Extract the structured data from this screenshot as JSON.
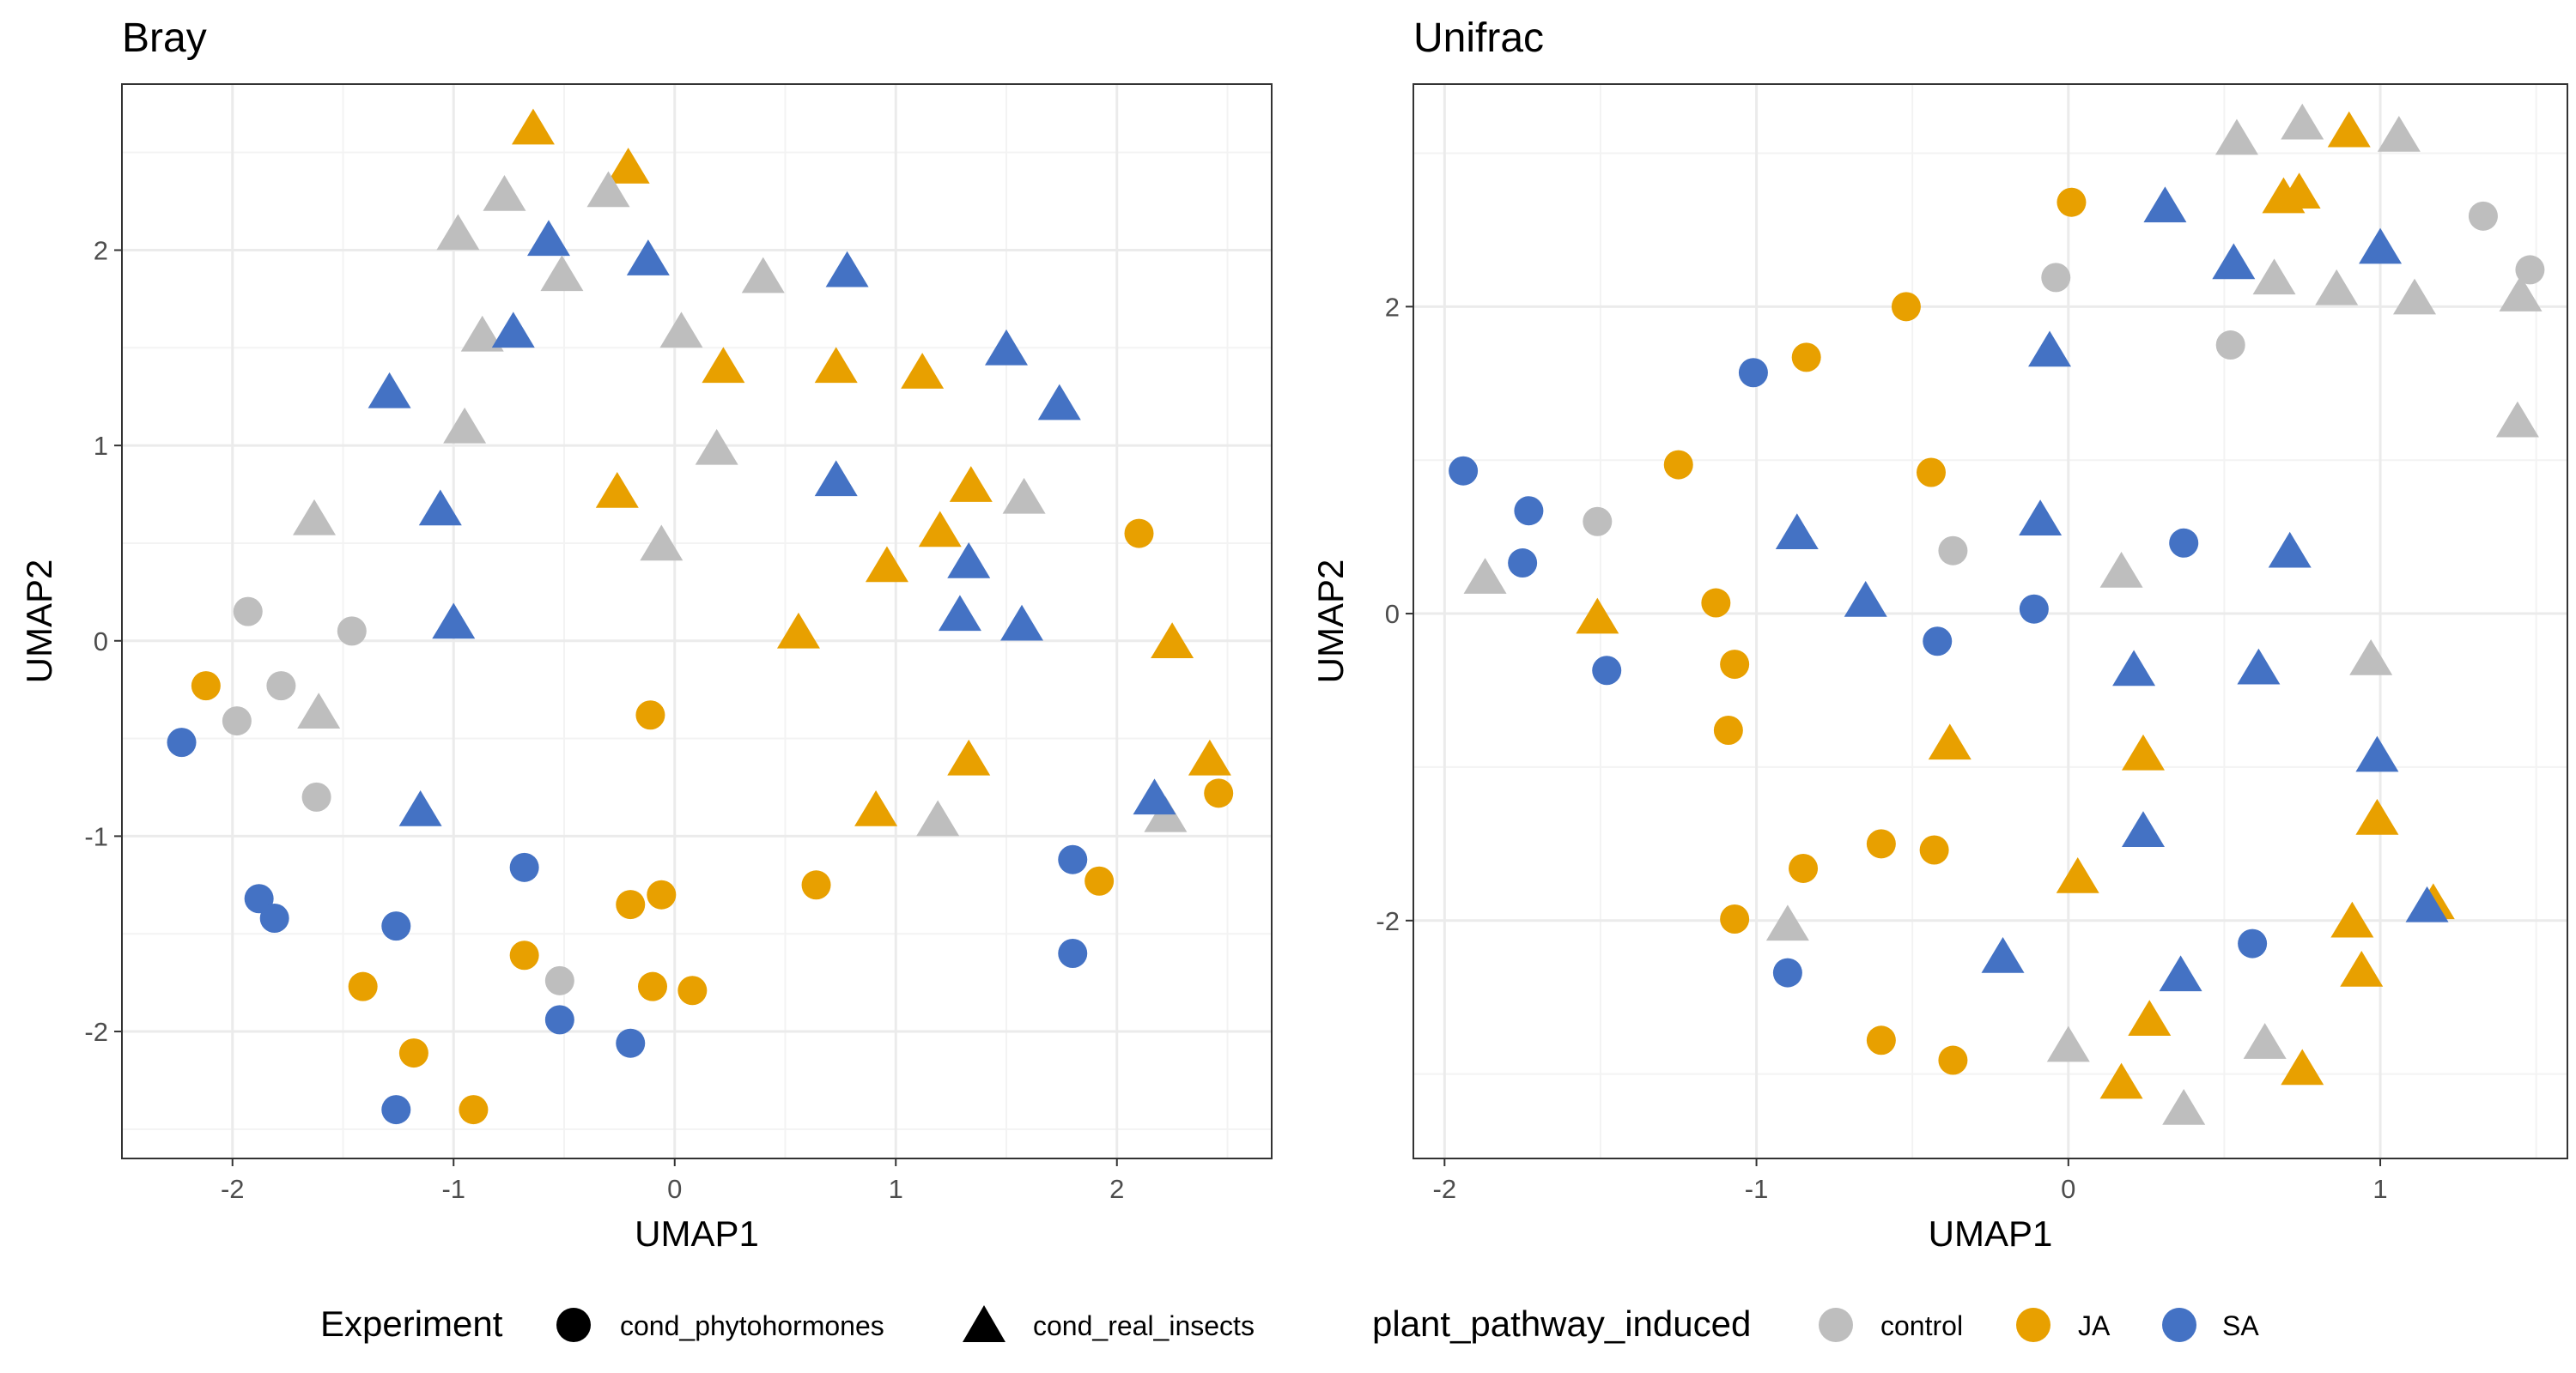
{
  "colors": {
    "control": "#bebebe",
    "JA": "#e8a000",
    "SA": "#4472c4",
    "grid_major": "#ebebeb",
    "grid_minor": "#f3f3f3",
    "panel_border": "#333333"
  },
  "legend": {
    "experiment": {
      "title": "Experiment",
      "items": [
        {
          "label": "cond_phytohormones",
          "shape": "circle",
          "icon": "circle-icon"
        },
        {
          "label": "cond_real_insects",
          "shape": "triangle",
          "icon": "triangle-icon"
        }
      ]
    },
    "pathway": {
      "title": "plant_pathway_induced",
      "items": [
        {
          "label": "control",
          "color_key": "control"
        },
        {
          "label": "JA",
          "color_key": "JA"
        },
        {
          "label": "SA",
          "color_key": "SA"
        }
      ]
    },
    "position": "bottom"
  },
  "chart_data": [
    {
      "type": "scatter",
      "title": "Bray",
      "xlabel": "UMAP1",
      "ylabel": "UMAP2",
      "xlim": [
        -2.5,
        2.7
      ],
      "ylim": [
        -2.65,
        2.85
      ],
      "xticks": [
        -2,
        -1,
        0,
        1,
        2
      ],
      "xtick_labels": [
        "-2",
        "-1",
        "0",
        "1",
        "2"
      ],
      "yticks": [
        -2,
        -1,
        0,
        1,
        2
      ],
      "ytick_labels": [
        "-2",
        "-1",
        "0",
        "1",
        "2"
      ],
      "grid": true,
      "points": [
        {
          "x": -2.23,
          "y": -0.52,
          "group": "SA",
          "shape": "circle"
        },
        {
          "x": -2.12,
          "y": -0.23,
          "group": "JA",
          "shape": "circle"
        },
        {
          "x": -1.98,
          "y": -0.41,
          "group": "control",
          "shape": "circle"
        },
        {
          "x": -1.93,
          "y": 0.15,
          "group": "control",
          "shape": "circle"
        },
        {
          "x": -1.78,
          "y": -0.23,
          "group": "control",
          "shape": "circle"
        },
        {
          "x": -1.62,
          "y": -0.8,
          "group": "control",
          "shape": "circle"
        },
        {
          "x": -1.46,
          "y": 0.05,
          "group": "control",
          "shape": "circle"
        },
        {
          "x": -1.88,
          "y": -1.32,
          "group": "SA",
          "shape": "circle"
        },
        {
          "x": -1.81,
          "y": -1.42,
          "group": "SA",
          "shape": "circle"
        },
        {
          "x": -1.41,
          "y": -1.77,
          "group": "JA",
          "shape": "circle"
        },
        {
          "x": -1.26,
          "y": -1.46,
          "group": "SA",
          "shape": "circle"
        },
        {
          "x": -1.18,
          "y": -2.11,
          "group": "JA",
          "shape": "circle"
        },
        {
          "x": -1.26,
          "y": -2.4,
          "group": "SA",
          "shape": "circle"
        },
        {
          "x": -0.91,
          "y": -2.4,
          "group": "JA",
          "shape": "circle"
        },
        {
          "x": -0.68,
          "y": -1.16,
          "group": "SA",
          "shape": "circle"
        },
        {
          "x": -0.68,
          "y": -1.61,
          "group": "JA",
          "shape": "circle"
        },
        {
          "x": -0.52,
          "y": -1.74,
          "group": "control",
          "shape": "circle"
        },
        {
          "x": -0.52,
          "y": -1.94,
          "group": "SA",
          "shape": "circle"
        },
        {
          "x": -0.2,
          "y": -1.35,
          "group": "JA",
          "shape": "circle"
        },
        {
          "x": -0.2,
          "y": -2.06,
          "group": "SA",
          "shape": "circle"
        },
        {
          "x": -0.1,
          "y": -1.77,
          "group": "JA",
          "shape": "circle"
        },
        {
          "x": -0.06,
          "y": -1.3,
          "group": "JA",
          "shape": "circle"
        },
        {
          "x": 0.08,
          "y": -1.79,
          "group": "JA",
          "shape": "circle"
        },
        {
          "x": -0.11,
          "y": -0.38,
          "group": "JA",
          "shape": "circle"
        },
        {
          "x": 0.64,
          "y": -1.25,
          "group": "JA",
          "shape": "circle"
        },
        {
          "x": 1.8,
          "y": -1.12,
          "group": "SA",
          "shape": "circle"
        },
        {
          "x": 1.8,
          "y": -1.6,
          "group": "SA",
          "shape": "circle"
        },
        {
          "x": 1.92,
          "y": -1.23,
          "group": "JA",
          "shape": "circle"
        },
        {
          "x": 2.1,
          "y": 0.55,
          "group": "JA",
          "shape": "circle"
        },
        {
          "x": 2.46,
          "y": -0.78,
          "group": "JA",
          "shape": "circle"
        },
        {
          "x": -0.64,
          "y": 2.62,
          "group": "JA",
          "shape": "triangle"
        },
        {
          "x": -0.21,
          "y": 2.42,
          "group": "JA",
          "shape": "triangle"
        },
        {
          "x": -0.77,
          "y": 2.28,
          "group": "control",
          "shape": "triangle"
        },
        {
          "x": -0.3,
          "y": 2.3,
          "group": "control",
          "shape": "triangle"
        },
        {
          "x": -0.98,
          "y": 2.08,
          "group": "control",
          "shape": "triangle"
        },
        {
          "x": -0.57,
          "y": 2.05,
          "group": "SA",
          "shape": "triangle"
        },
        {
          "x": -0.12,
          "y": 1.95,
          "group": "SA",
          "shape": "triangle"
        },
        {
          "x": -0.51,
          "y": 1.87,
          "group": "control",
          "shape": "triangle"
        },
        {
          "x": 0.4,
          "y": 1.86,
          "group": "control",
          "shape": "triangle"
        },
        {
          "x": 0.78,
          "y": 1.89,
          "group": "SA",
          "shape": "triangle"
        },
        {
          "x": -0.87,
          "y": 1.56,
          "group": "control",
          "shape": "triangle"
        },
        {
          "x": -0.73,
          "y": 1.58,
          "group": "SA",
          "shape": "triangle"
        },
        {
          "x": 0.03,
          "y": 1.58,
          "group": "control",
          "shape": "triangle"
        },
        {
          "x": -1.29,
          "y": 1.27,
          "group": "SA",
          "shape": "triangle"
        },
        {
          "x": 0.22,
          "y": 1.4,
          "group": "JA",
          "shape": "triangle"
        },
        {
          "x": 0.73,
          "y": 1.4,
          "group": "JA",
          "shape": "triangle"
        },
        {
          "x": 1.12,
          "y": 1.37,
          "group": "JA",
          "shape": "triangle"
        },
        {
          "x": 1.5,
          "y": 1.49,
          "group": "SA",
          "shape": "triangle"
        },
        {
          "x": 1.74,
          "y": 1.21,
          "group": "SA",
          "shape": "triangle"
        },
        {
          "x": -0.95,
          "y": 1.09,
          "group": "control",
          "shape": "triangle"
        },
        {
          "x": 0.19,
          "y": 0.98,
          "group": "control",
          "shape": "triangle"
        },
        {
          "x": -1.63,
          "y": 0.62,
          "group": "control",
          "shape": "triangle"
        },
        {
          "x": -1.06,
          "y": 0.67,
          "group": "SA",
          "shape": "triangle"
        },
        {
          "x": -0.26,
          "y": 0.76,
          "group": "JA",
          "shape": "triangle"
        },
        {
          "x": -0.06,
          "y": 0.49,
          "group": "control",
          "shape": "triangle"
        },
        {
          "x": 0.73,
          "y": 0.82,
          "group": "SA",
          "shape": "triangle"
        },
        {
          "x": 1.34,
          "y": 0.79,
          "group": "JA",
          "shape": "triangle"
        },
        {
          "x": 1.2,
          "y": 0.56,
          "group": "JA",
          "shape": "triangle"
        },
        {
          "x": 1.58,
          "y": 0.73,
          "group": "control",
          "shape": "triangle"
        },
        {
          "x": 0.96,
          "y": 0.38,
          "group": "JA",
          "shape": "triangle"
        },
        {
          "x": 1.33,
          "y": 0.4,
          "group": "SA",
          "shape": "triangle"
        },
        {
          "x": -1.0,
          "y": 0.09,
          "group": "SA",
          "shape": "triangle"
        },
        {
          "x": 0.56,
          "y": 0.04,
          "group": "JA",
          "shape": "triangle"
        },
        {
          "x": 1.29,
          "y": 0.13,
          "group": "SA",
          "shape": "triangle"
        },
        {
          "x": 1.57,
          "y": 0.08,
          "group": "SA",
          "shape": "triangle"
        },
        {
          "x": 2.25,
          "y": -0.01,
          "group": "JA",
          "shape": "triangle"
        },
        {
          "x": -1.61,
          "y": -0.37,
          "group": "control",
          "shape": "triangle"
        },
        {
          "x": 1.33,
          "y": -0.61,
          "group": "JA",
          "shape": "triangle"
        },
        {
          "x": 2.42,
          "y": -0.61,
          "group": "JA",
          "shape": "triangle"
        },
        {
          "x": -1.15,
          "y": -0.87,
          "group": "SA",
          "shape": "triangle"
        },
        {
          "x": 0.91,
          "y": -0.87,
          "group": "JA",
          "shape": "triangle"
        },
        {
          "x": 1.19,
          "y": -0.92,
          "group": "control",
          "shape": "triangle"
        },
        {
          "x": 2.22,
          "y": -0.9,
          "group": "control",
          "shape": "triangle"
        },
        {
          "x": 2.17,
          "y": -0.81,
          "group": "SA",
          "shape": "triangle"
        }
      ]
    },
    {
      "type": "scatter",
      "title": "Unifrac",
      "xlabel": "UMAP1",
      "ylabel": "UMAP2",
      "xlim": [
        -2.1,
        1.6
      ],
      "ylim": [
        -3.55,
        3.45
      ],
      "xticks": [
        -2,
        -1,
        0,
        1
      ],
      "xtick_labels": [
        "-2",
        "-1",
        "0",
        "1"
      ],
      "yticks": [
        -2,
        0,
        2
      ],
      "ytick_labels": [
        "-2",
        "0",
        "2"
      ],
      "grid": true,
      "points": [
        {
          "x": -1.94,
          "y": 0.93,
          "group": "SA",
          "shape": "circle"
        },
        {
          "x": -1.73,
          "y": 0.67,
          "group": "SA",
          "shape": "circle"
        },
        {
          "x": -1.75,
          "y": 0.33,
          "group": "SA",
          "shape": "circle"
        },
        {
          "x": -1.51,
          "y": 0.6,
          "group": "control",
          "shape": "circle"
        },
        {
          "x": -1.48,
          "y": -0.37,
          "group": "SA",
          "shape": "circle"
        },
        {
          "x": -1.25,
          "y": 0.97,
          "group": "JA",
          "shape": "circle"
        },
        {
          "x": -1.13,
          "y": 0.07,
          "group": "JA",
          "shape": "circle"
        },
        {
          "x": -1.07,
          "y": -0.33,
          "group": "JA",
          "shape": "circle"
        },
        {
          "x": -1.09,
          "y": -0.76,
          "group": "JA",
          "shape": "circle"
        },
        {
          "x": -1.01,
          "y": 1.57,
          "group": "SA",
          "shape": "circle"
        },
        {
          "x": -0.84,
          "y": 1.67,
          "group": "JA",
          "shape": "circle"
        },
        {
          "x": -0.52,
          "y": 2.0,
          "group": "JA",
          "shape": "circle"
        },
        {
          "x": -0.44,
          "y": 0.92,
          "group": "JA",
          "shape": "circle"
        },
        {
          "x": -0.37,
          "y": 0.41,
          "group": "control",
          "shape": "circle"
        },
        {
          "x": -0.42,
          "y": -0.18,
          "group": "SA",
          "shape": "circle"
        },
        {
          "x": -0.11,
          "y": 0.03,
          "group": "SA",
          "shape": "circle"
        },
        {
          "x": -0.04,
          "y": 2.19,
          "group": "control",
          "shape": "circle"
        },
        {
          "x": 0.01,
          "y": 2.68,
          "group": "JA",
          "shape": "circle"
        },
        {
          "x": -0.85,
          "y": -1.66,
          "group": "JA",
          "shape": "circle"
        },
        {
          "x": -0.6,
          "y": -1.5,
          "group": "JA",
          "shape": "circle"
        },
        {
          "x": -0.43,
          "y": -1.54,
          "group": "JA",
          "shape": "circle"
        },
        {
          "x": -1.07,
          "y": -1.99,
          "group": "JA",
          "shape": "circle"
        },
        {
          "x": -0.9,
          "y": -2.34,
          "group": "SA",
          "shape": "circle"
        },
        {
          "x": -0.6,
          "y": -2.78,
          "group": "JA",
          "shape": "circle"
        },
        {
          "x": -0.37,
          "y": -2.91,
          "group": "JA",
          "shape": "circle"
        },
        {
          "x": 0.37,
          "y": 0.46,
          "group": "SA",
          "shape": "circle"
        },
        {
          "x": 0.52,
          "y": 1.75,
          "group": "control",
          "shape": "circle"
        },
        {
          "x": 0.59,
          "y": -2.15,
          "group": "SA",
          "shape": "circle"
        },
        {
          "x": 1.33,
          "y": 2.59,
          "group": "control",
          "shape": "circle"
        },
        {
          "x": 1.48,
          "y": 2.24,
          "group": "control",
          "shape": "circle"
        },
        {
          "x": -1.87,
          "y": 0.23,
          "group": "control",
          "shape": "triangle"
        },
        {
          "x": -1.51,
          "y": -0.03,
          "group": "JA",
          "shape": "triangle"
        },
        {
          "x": -0.87,
          "y": 0.52,
          "group": "SA",
          "shape": "triangle"
        },
        {
          "x": -0.65,
          "y": 0.08,
          "group": "SA",
          "shape": "triangle"
        },
        {
          "x": -0.38,
          "y": -0.85,
          "group": "JA",
          "shape": "triangle"
        },
        {
          "x": -0.09,
          "y": 0.61,
          "group": "SA",
          "shape": "triangle"
        },
        {
          "x": -0.06,
          "y": 1.71,
          "group": "SA",
          "shape": "triangle"
        },
        {
          "x": 0.17,
          "y": 0.27,
          "group": "control",
          "shape": "triangle"
        },
        {
          "x": 0.21,
          "y": -0.37,
          "group": "SA",
          "shape": "triangle"
        },
        {
          "x": 0.24,
          "y": -0.92,
          "group": "JA",
          "shape": "triangle"
        },
        {
          "x": 0.31,
          "y": 2.65,
          "group": "SA",
          "shape": "triangle"
        },
        {
          "x": 0.54,
          "y": 3.09,
          "group": "control",
          "shape": "triangle"
        },
        {
          "x": 0.53,
          "y": 2.28,
          "group": "SA",
          "shape": "triangle"
        },
        {
          "x": 0.66,
          "y": 2.18,
          "group": "control",
          "shape": "triangle"
        },
        {
          "x": 0.69,
          "y": 2.71,
          "group": "JA",
          "shape": "triangle"
        },
        {
          "x": 0.74,
          "y": 2.74,
          "group": "JA",
          "shape": "triangle"
        },
        {
          "x": 0.75,
          "y": 3.19,
          "group": "control",
          "shape": "triangle"
        },
        {
          "x": 0.86,
          "y": 2.11,
          "group": "control",
          "shape": "triangle"
        },
        {
          "x": 0.9,
          "y": 3.14,
          "group": "JA",
          "shape": "triangle"
        },
        {
          "x": 1.0,
          "y": 2.38,
          "group": "SA",
          "shape": "triangle"
        },
        {
          "x": 1.06,
          "y": 3.11,
          "group": "control",
          "shape": "triangle"
        },
        {
          "x": 1.11,
          "y": 2.05,
          "group": "control",
          "shape": "triangle"
        },
        {
          "x": 1.45,
          "y": 2.07,
          "group": "control",
          "shape": "triangle"
        },
        {
          "x": 1.44,
          "y": 1.25,
          "group": "control",
          "shape": "triangle"
        },
        {
          "x": 0.71,
          "y": 0.4,
          "group": "SA",
          "shape": "triangle"
        },
        {
          "x": 0.61,
          "y": -0.36,
          "group": "SA",
          "shape": "triangle"
        },
        {
          "x": 0.97,
          "y": -0.3,
          "group": "control",
          "shape": "triangle"
        },
        {
          "x": 0.99,
          "y": -0.93,
          "group": "SA",
          "shape": "triangle"
        },
        {
          "x": 0.99,
          "y": -1.34,
          "group": "JA",
          "shape": "triangle"
        },
        {
          "x": 0.24,
          "y": -1.42,
          "group": "SA",
          "shape": "triangle"
        },
        {
          "x": 0.03,
          "y": -1.72,
          "group": "JA",
          "shape": "triangle"
        },
        {
          "x": -0.21,
          "y": -2.24,
          "group": "SA",
          "shape": "triangle"
        },
        {
          "x": 0.36,
          "y": -2.36,
          "group": "SA",
          "shape": "triangle"
        },
        {
          "x": 0.26,
          "y": -2.65,
          "group": "JA",
          "shape": "triangle"
        },
        {
          "x": 0.91,
          "y": -2.01,
          "group": "JA",
          "shape": "triangle"
        },
        {
          "x": 0.94,
          "y": -2.33,
          "group": "JA",
          "shape": "triangle"
        },
        {
          "x": 1.17,
          "y": -1.89,
          "group": "JA",
          "shape": "triangle"
        },
        {
          "x": 1.15,
          "y": -1.91,
          "group": "SA",
          "shape": "triangle"
        },
        {
          "x": -0.9,
          "y": -2.03,
          "group": "control",
          "shape": "triangle"
        },
        {
          "x": 0.0,
          "y": -2.82,
          "group": "control",
          "shape": "triangle"
        },
        {
          "x": 0.17,
          "y": -3.06,
          "group": "JA",
          "shape": "triangle"
        },
        {
          "x": 0.37,
          "y": -3.23,
          "group": "control",
          "shape": "triangle"
        },
        {
          "x": 0.63,
          "y": -2.8,
          "group": "control",
          "shape": "triangle"
        },
        {
          "x": 0.75,
          "y": -2.97,
          "group": "JA",
          "shape": "triangle"
        }
      ]
    }
  ]
}
